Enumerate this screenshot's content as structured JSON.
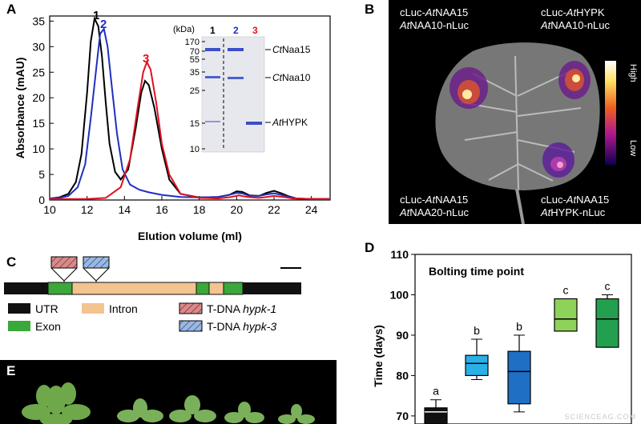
{
  "panels": {
    "A": {
      "label": "A",
      "chart_data": {
        "type": "line",
        "xlabel": "Elution volume (ml)",
        "ylabel": "Absorbance (mAU)",
        "xlim": [
          10,
          25
        ],
        "ylim": [
          0,
          36
        ],
        "xticks": [
          10,
          12,
          14,
          16,
          18,
          20,
          22,
          24
        ],
        "yticks": [
          0,
          5,
          10,
          15,
          20,
          25,
          30,
          35
        ],
        "series": [
          {
            "name": "1",
            "color": "#000000",
            "x": [
              10,
              10.5,
              11,
              11.4,
              11.7,
              12,
              12.2,
              12.4,
              12.6,
              12.8,
              13,
              13.2,
              13.5,
              13.8,
              14.2,
              14.6,
              14.9,
              15.1,
              15.3,
              15.6,
              16,
              16.4,
              17,
              18,
              19,
              19.6,
              20,
              20.3,
              20.7,
              21.2,
              21.6,
              22,
              22.4,
              22.8,
              23.2,
              24,
              25
            ],
            "y": [
              0.3,
              0.5,
              1.2,
              3.5,
              9,
              21,
              31,
              35.5,
              34,
              28,
              19,
              11,
              5.5,
              4,
              6,
              14,
              21,
              23.3,
              22.5,
              18,
              10,
              4,
              1.2,
              0.5,
              0.6,
              1,
              1.7,
              1.6,
              0.9,
              0.8,
              1.4,
              1.8,
              1.3,
              0.7,
              0.3,
              0.2,
              0.2
            ]
          },
          {
            "name": "2",
            "color": "#1f2fbf",
            "x": [
              10,
              10.5,
              11,
              11.5,
              11.9,
              12.2,
              12.5,
              12.7,
              12.9,
              13.1,
              13.3,
              13.6,
              13.9,
              14.3,
              14.8,
              15.3,
              16,
              17,
              18,
              19,
              19.6,
              20,
              20.3,
              20.7,
              21.2,
              21.6,
              22,
              22.4,
              22.8,
              23.2,
              24,
              25
            ],
            "y": [
              0.3,
              0.4,
              0.8,
              2.5,
              7,
              16,
              26,
              32.5,
              33.5,
              30,
              23,
              13,
              6,
              3,
              2,
              1.5,
              1,
              0.6,
              0.5,
              0.6,
              1,
              1.4,
              1.3,
              0.8,
              0.8,
              1.1,
              1.3,
              1,
              0.6,
              0.3,
              0.2,
              0.2
            ]
          },
          {
            "name": "3",
            "color": "#e01020",
            "x": [
              10,
              12,
              13,
              13.8,
              14.3,
              14.7,
              15,
              15.2,
              15.4,
              15.7,
              16,
              16.4,
              17,
              18,
              19,
              19.7,
              20.1,
              20.6,
              21.2,
              21.6,
              22,
              22.5,
              23,
              24,
              25
            ],
            "y": [
              0.2,
              0.2,
              0.4,
              2.5,
              8,
              18,
              25,
              27,
              25.5,
              19,
              11,
              5,
              1.2,
              0.4,
              0.3,
              0.6,
              0.9,
              0.6,
              0.4,
              0.6,
              0.8,
              0.6,
              0.3,
              0.2,
              0.2
            ]
          }
        ],
        "peak_labels": [
          "1",
          "2",
          "3"
        ]
      },
      "gel": {
        "unit": "(kDa)",
        "lanes": [
          "1",
          "2",
          "3"
        ],
        "markers": [
          "170",
          "70",
          "55",
          "35",
          "25",
          "15",
          "10"
        ],
        "bands": [
          "CtNaa15",
          "CtNaa10",
          "AtHYPK"
        ],
        "band_labels": [
          {
            "italic": "Ct",
            "rest": "Naa15"
          },
          {
            "italic": "Ct",
            "rest": "Naa10"
          },
          {
            "italic": "At",
            "rest": "HYPK"
          }
        ]
      }
    },
    "B": {
      "label": "B",
      "top_left": {
        "line1_pre": "cLuc-",
        "line1_it": "At",
        "line1_post": "NAA15",
        "line2_it": "At",
        "line2_post": "NAA10-nLuc"
      },
      "top_right": {
        "line1_pre": "cLuc-",
        "line1_it": "At",
        "line1_post": "HYPK",
        "line2_it": "At",
        "line2_post": "NAA10-nLuc"
      },
      "bottom_left": {
        "line1_pre": "cLuc-",
        "line1_it": "At",
        "line1_post": "NAA15",
        "line2_it": "At",
        "line2_post": "NAA20-nLuc"
      },
      "bottom_right": {
        "line1_pre": "cLuc-",
        "line1_it": "At",
        "line1_post": "NAA15",
        "line2_it": "At",
        "line2_post": "HYPK-nLuc"
      },
      "scale_high": "High",
      "scale_low": "Low"
    },
    "C": {
      "label": "C",
      "legend": {
        "utr": "UTR",
        "intron": "Intron",
        "exon": "Exon",
        "tdna1_pre": "T-DNA ",
        "tdna1_it": "hypk-1",
        "tdna3_pre": "T-DNA ",
        "tdna3_it": "hypk-3"
      },
      "colors": {
        "utr": "#111111",
        "exon": "#3aa83a",
        "intron": "#f2c48f",
        "tdna1": "#d98a8a",
        "tdna3": "#9ab8e0"
      }
    },
    "D": {
      "label": "D",
      "chart_data": {
        "type": "box",
        "title": "Bolting time point",
        "ylabel": "Time (days)",
        "ylim": [
          68,
          110
        ],
        "yticks": [
          70,
          80,
          90,
          100,
          110
        ],
        "boxes": [
          {
            "color": "#111111",
            "min": 67,
            "q1": 68,
            "median": 71,
            "q3": 72,
            "max": 74,
            "letter": "a"
          },
          {
            "color": "#2ab0e8",
            "min": 79,
            "q1": 80,
            "median": 83,
            "q3": 85,
            "max": 89,
            "letter": "b"
          },
          {
            "color": "#1f6fc4",
            "min": 71,
            "q1": 73,
            "median": 81,
            "q3": 86,
            "max": 90,
            "letter": "b"
          },
          {
            "color": "#8ed25a",
            "min": 91,
            "q1": 91,
            "median": 94,
            "q3": 99,
            "max": 99,
            "letter": "c"
          },
          {
            "color": "#22a050",
            "min": 87,
            "q1": 87,
            "median": 94,
            "q3": 99,
            "max": 100,
            "letter": "c"
          }
        ]
      }
    },
    "E": {
      "label": "E"
    },
    "watermark": "SCIENCEAG.COM"
  }
}
